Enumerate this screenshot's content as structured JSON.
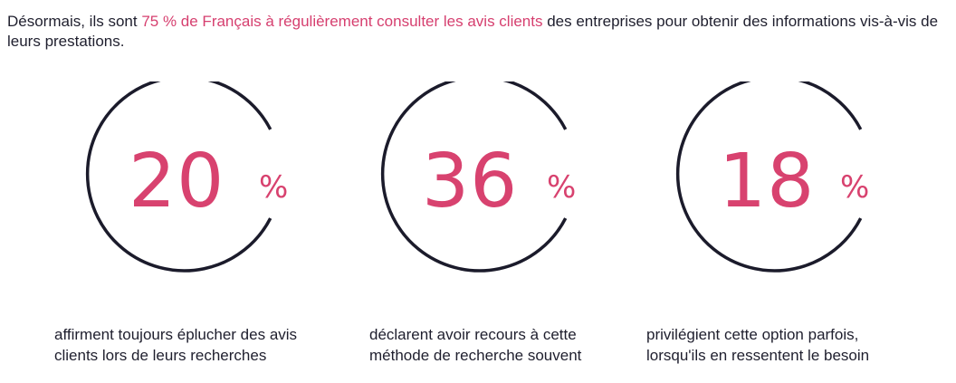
{
  "intro": {
    "before": "Désormais, ils sont ",
    "highlight": "75 % de Français à régulièrement consulter les avis clients",
    "after": " des entreprises pour obtenir des informations vis-à-vis de leurs prestations."
  },
  "colors": {
    "accent": "#d8426f",
    "ring": "#1b1b2b",
    "text": "#1f1f2e"
  },
  "stats": [
    {
      "number": "20",
      "percent": "%",
      "caption_line1": "affirment toujours éplucher des avis",
      "caption_line2": "clients lors de leurs recherches"
    },
    {
      "number": "36",
      "percent": "%",
      "caption_line1": "déclarent avoir recours à cette",
      "caption_line2": "méthode de recherche souvent"
    },
    {
      "number": "18",
      "percent": "%",
      "caption_line1": "privilégient cette option parfois,",
      "caption_line2": "lorsqu'ils en ressentent le besoin"
    }
  ]
}
